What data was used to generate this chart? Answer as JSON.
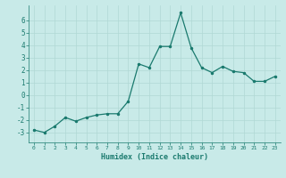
{
  "x": [
    0,
    1,
    2,
    3,
    4,
    5,
    6,
    7,
    8,
    9,
    10,
    11,
    12,
    13,
    14,
    15,
    16,
    17,
    18,
    19,
    20,
    21,
    22,
    23
  ],
  "y": [
    -2.8,
    -3.0,
    -2.5,
    -1.8,
    -2.1,
    -1.8,
    -1.6,
    -1.5,
    -1.5,
    -0.5,
    2.5,
    2.2,
    3.9,
    3.9,
    6.6,
    3.8,
    2.2,
    1.8,
    2.3,
    1.9,
    1.8,
    1.1,
    1.1,
    1.5
  ],
  "xlabel": "Humidex (Indice chaleur)",
  "ylim": [
    -3.8,
    7.2
  ],
  "xlim": [
    -0.5,
    23.5
  ],
  "yticks": [
    -3,
    -2,
    -1,
    0,
    1,
    2,
    3,
    4,
    5,
    6
  ],
  "xticks": [
    0,
    1,
    2,
    3,
    4,
    5,
    6,
    7,
    8,
    9,
    10,
    11,
    12,
    13,
    14,
    15,
    16,
    17,
    18,
    19,
    20,
    21,
    22,
    23
  ],
  "line_color": "#1a7a6e",
  "marker_color": "#1a7a6e",
  "bg_color": "#c8eae8",
  "grid_color": "#b0d8d4",
  "xlabel_color": "#1a7a6e",
  "tick_color": "#1a7a6e"
}
